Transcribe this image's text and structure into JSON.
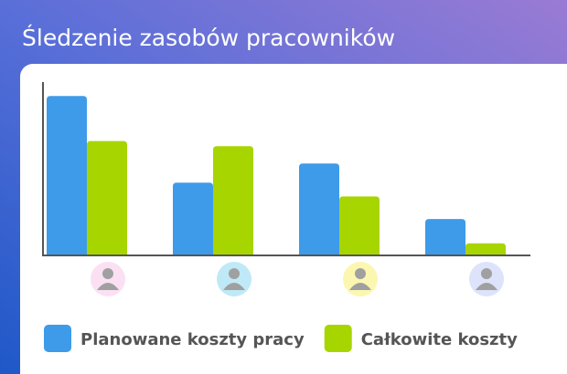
{
  "chart_data": {
    "type": "bar",
    "title": "Śledzenie zasobów pracowników",
    "categories": [
      null,
      null,
      null,
      null
    ],
    "series": [
      {
        "name": "Planowane koszty pracy",
        "color": "#3d9be9",
        "values": [
          92,
          42,
          53,
          21
        ]
      },
      {
        "name": "Całkowite koszty",
        "color": "#a7d500",
        "values": [
          66,
          63,
          34,
          7
        ]
      }
    ],
    "ylim": [
      0,
      100
    ],
    "legend": "bottom-left"
  }
}
